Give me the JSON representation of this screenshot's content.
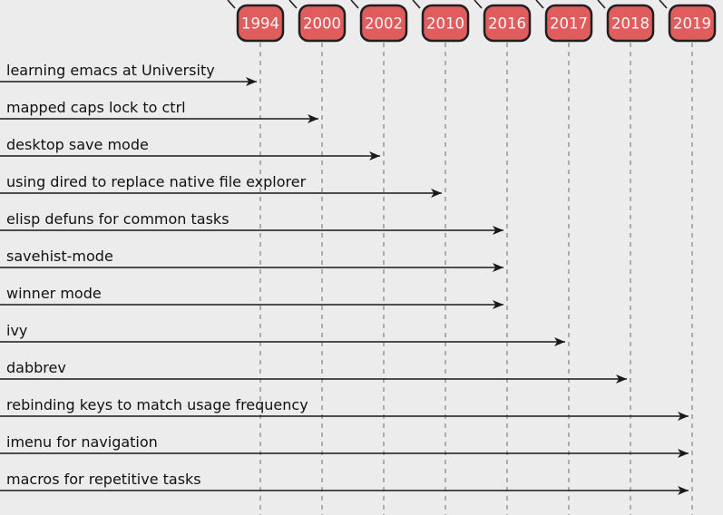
{
  "chart_data": {
    "type": "table",
    "title": "",
    "description": "Timeline of emacs feature adoption: labeled arrows pointing to year milestones",
    "categories": [
      "1994",
      "2000",
      "2002",
      "2010",
      "2016",
      "2017",
      "2018",
      "2019"
    ],
    "rows": [
      {
        "label": "learning emacs at University",
        "year": "1994"
      },
      {
        "label": "mapped caps lock to ctrl",
        "year": "2000"
      },
      {
        "label": "desktop save mode",
        "year": "2002"
      },
      {
        "label": "using dired to replace native file explorer",
        "year": "2010"
      },
      {
        "label": "elisp defuns for common tasks",
        "year": "2016"
      },
      {
        "label": "savehist-mode",
        "year": "2016"
      },
      {
        "label": "winner mode",
        "year": "2016"
      },
      {
        "label": "ivy",
        "year": "2017"
      },
      {
        "label": "dabbrev",
        "year": "2018"
      },
      {
        "label": "rebinding keys to match usage frequency",
        "year": "2019"
      },
      {
        "label": "imenu for navigation",
        "year": "2019"
      },
      {
        "label": "macros for repetitive tasks",
        "year": "2019"
      }
    ]
  },
  "timeline": {
    "years": [
      "1994",
      "2000",
      "2002",
      "2010",
      "2016",
      "2017",
      "2018",
      "2019"
    ],
    "rows": [
      {
        "label": "learning emacs at University",
        "year": "1994"
      },
      {
        "label": "mapped caps lock to ctrl",
        "year": "2000"
      },
      {
        "label": "desktop save mode",
        "year": "2002"
      },
      {
        "label": "using dired to replace native file explorer",
        "year": "2010"
      },
      {
        "label": "elisp defuns for common tasks",
        "year": "2016"
      },
      {
        "label": "savehist-mode",
        "year": "2016"
      },
      {
        "label": "winner mode",
        "year": "2016"
      },
      {
        "label": "ivy",
        "year": "2017"
      },
      {
        "label": "dabbrev",
        "year": "2018"
      },
      {
        "label": "rebinding keys to match usage frequency",
        "year": "2019"
      },
      {
        "label": "imenu for navigation",
        "year": "2019"
      },
      {
        "label": "macros for repetitive tasks",
        "year": "2019"
      }
    ],
    "colors": {
      "background": "#ececec",
      "badge_fill": "#e15d5d",
      "badge_border": "#1f1f1f",
      "badge_text": "#f7f7f7",
      "gridline": "#8a8a8a",
      "arrow": "#1a1a1a",
      "label_text": "#111111"
    }
  }
}
